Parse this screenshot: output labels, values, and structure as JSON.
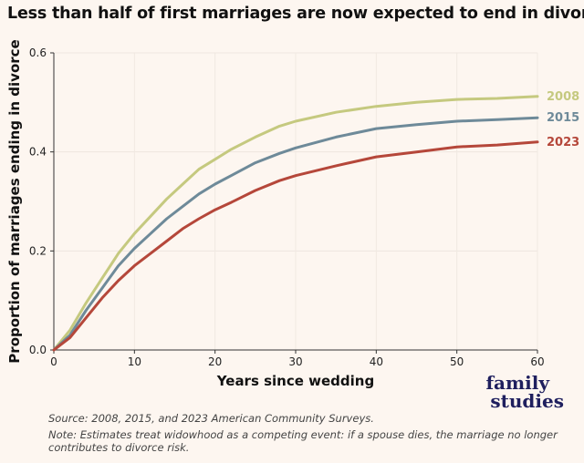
{
  "title": "Less than half of first marriages are now expected to end in divorce",
  "source": "Source: 2008, 2015, and 2023 American Community Surveys.",
  "note": "Note: Estimates treat widowhood as a competing event: if a spouse dies, the marriage no longer contributes to divorce risk.",
  "logo": {
    "line1": "family",
    "line2": "studies"
  },
  "chart_data": {
    "type": "line",
    "title": "Less than half of first marriages are now expected to end in divorce",
    "xlabel": "Years since wedding",
    "ylabel": "Proportion of marriages ending in divorce",
    "xlim": [
      0,
      60
    ],
    "ylim": [
      0,
      0.6
    ],
    "xticks": [
      0,
      10,
      20,
      30,
      40,
      50,
      60
    ],
    "yticks": [
      0.0,
      0.2,
      0.4,
      0.6
    ],
    "ytick_labels": [
      "0.0",
      "0.2",
      "0.4",
      "0.6"
    ],
    "grid": true,
    "x": [
      0,
      2,
      4,
      6,
      8,
      10,
      12,
      14,
      16,
      18,
      20,
      22,
      25,
      28,
      30,
      35,
      40,
      45,
      50,
      55,
      60
    ],
    "series": [
      {
        "name": "2008",
        "color": "#c5c97f",
        "values": [
          0,
          0.04,
          0.095,
          0.145,
          0.195,
          0.235,
          0.27,
          0.305,
          0.335,
          0.365,
          0.385,
          0.405,
          0.43,
          0.452,
          0.462,
          0.48,
          0.492,
          0.5,
          0.506,
          0.508,
          0.512
        ]
      },
      {
        "name": "2015",
        "color": "#6e8a99",
        "values": [
          0,
          0.03,
          0.08,
          0.125,
          0.17,
          0.205,
          0.235,
          0.265,
          0.29,
          0.315,
          0.335,
          0.352,
          0.378,
          0.397,
          0.408,
          0.43,
          0.447,
          0.455,
          0.462,
          0.465,
          0.469
        ]
      },
      {
        "name": "2023",
        "color": "#b5473a",
        "values": [
          0,
          0.025,
          0.065,
          0.105,
          0.14,
          0.17,
          0.195,
          0.22,
          0.245,
          0.265,
          0.283,
          0.298,
          0.322,
          0.342,
          0.352,
          0.372,
          0.39,
          0.4,
          0.41,
          0.414,
          0.42
        ]
      }
    ]
  }
}
